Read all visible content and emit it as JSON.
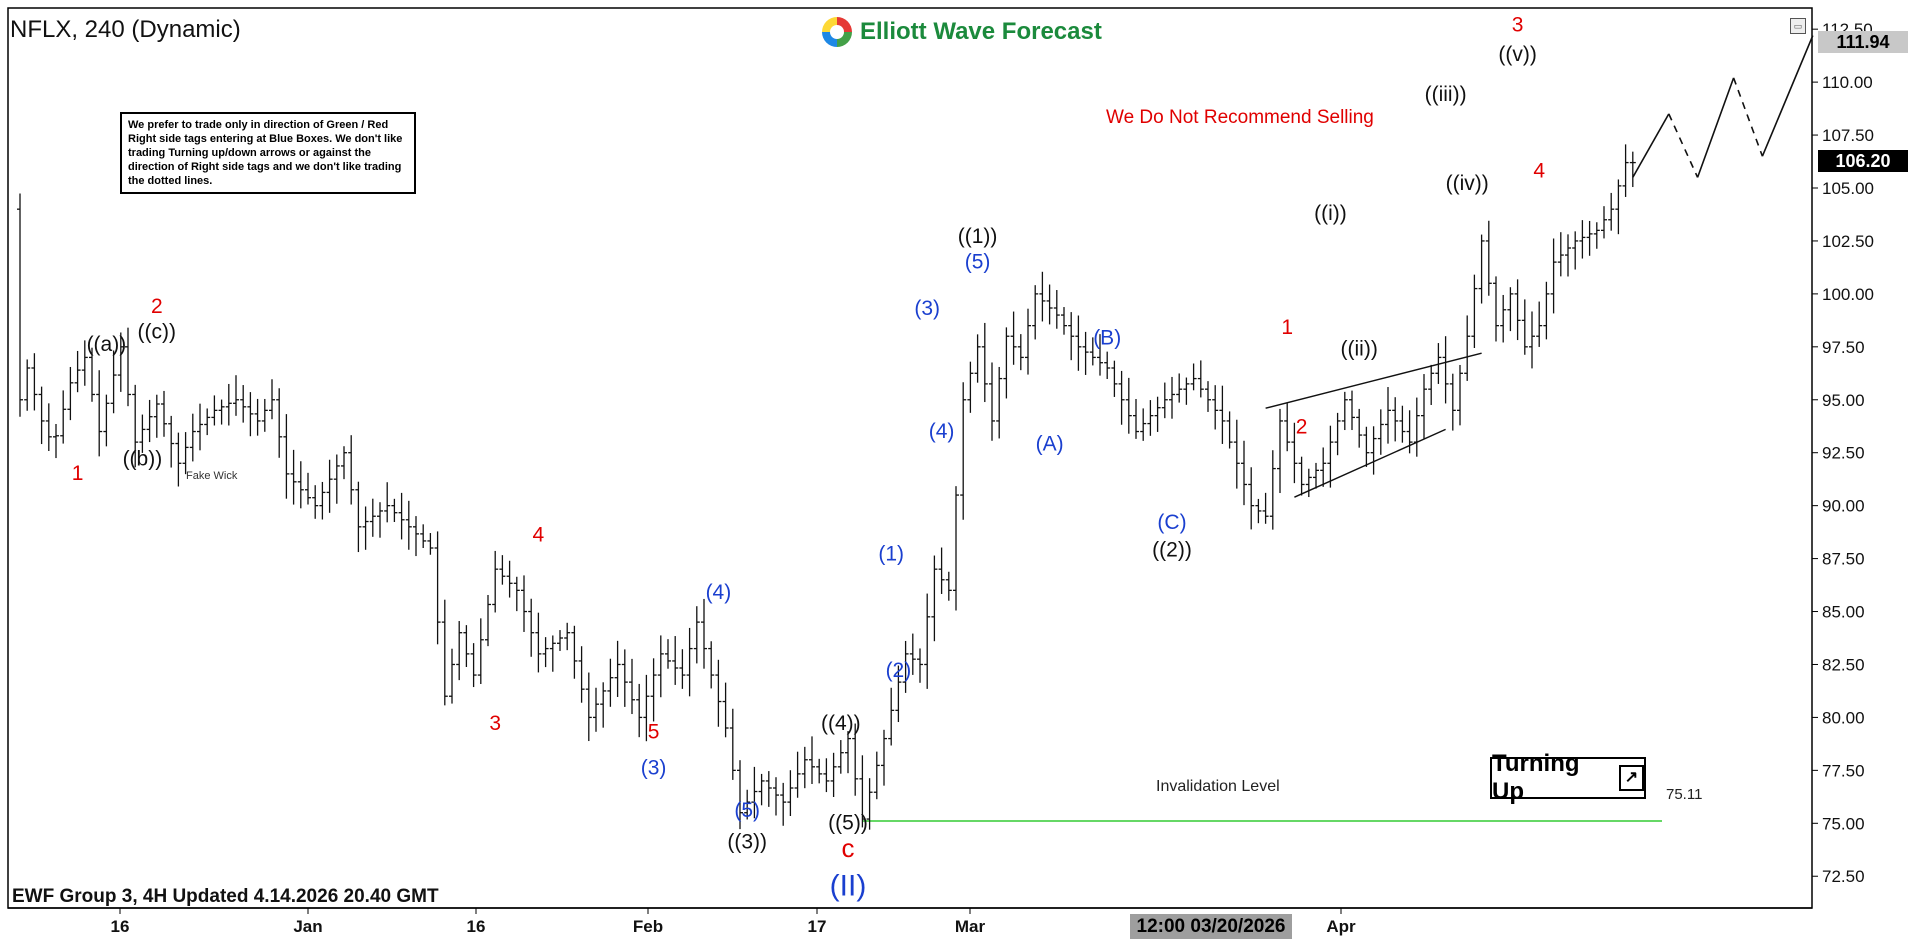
{
  "symbol": "NFLX, 240 (Dynamic)",
  "brand": "Elliott Wave Forecast",
  "note": "We prefer to trade only in direction of Green / Red Right side tags entering at Blue Boxes. We don't like trading Turning up/down arrows or against the direction of Right side tags and we don't like trading the dotted lines.",
  "recommendation": "We Do Not Recommend Selling",
  "turning": {
    "label": "Turning Up",
    "icon": "arrow-up-right-icon"
  },
  "footer": "EWF Group 3, 4H Updated 4.14.2026 20.40 GMT",
  "invalidation": {
    "label": "Invalidation Level",
    "value": "75.11"
  },
  "cursor_date": "12:00 03/20/2026",
  "fake_wick": "Fake Wick",
  "last_price": "106.20",
  "target_price": "111.94",
  "colors": {
    "red": "#e00000",
    "blue": "#1a3fcf",
    "black": "#111111",
    "green": "#33cc33"
  },
  "chart_data": {
    "type": "bar",
    "subtype": "ohlc",
    "ylim": [
      71,
      113.5
    ],
    "y_ticks": [
      "112.50",
      "110.00",
      "107.50",
      "105.00",
      "102.50",
      "100.00",
      "97.50",
      "95.00",
      "92.50",
      "90.00",
      "87.50",
      "85.00",
      "82.50",
      "80.00",
      "77.50",
      "75.00",
      "72.50"
    ],
    "x_ticks": [
      "16",
      "Jan",
      "16",
      "Feb",
      "17",
      "Mar",
      "Apr"
    ],
    "invalidation_level": 75.11,
    "path": [
      [
        0,
        104
      ],
      [
        0.5,
        95
      ],
      [
        1,
        96.5
      ],
      [
        2,
        94
      ],
      [
        2.8,
        92.8
      ],
      [
        4,
        95.8
      ],
      [
        5,
        97
      ],
      [
        6,
        93.5
      ],
      [
        7.5,
        97.5
      ],
      [
        8.5,
        93
      ],
      [
        10,
        94.8
      ],
      [
        11.5,
        92
      ],
      [
        12.5,
        93.5
      ],
      [
        14,
        94.5
      ],
      [
        15.5,
        95
      ],
      [
        17,
        94
      ],
      [
        18,
        95
      ],
      [
        19,
        91.5
      ],
      [
        21,
        90
      ],
      [
        23,
        92.5
      ],
      [
        24,
        89
      ],
      [
        26,
        90
      ],
      [
        27.5,
        89
      ],
      [
        29,
        88
      ],
      [
        30,
        81
      ],
      [
        31,
        84
      ],
      [
        32,
        82
      ],
      [
        33.5,
        87
      ],
      [
        35,
        86
      ],
      [
        36.5,
        83
      ],
      [
        38.5,
        84
      ],
      [
        40,
        80
      ],
      [
        42,
        82.5
      ],
      [
        43.5,
        80
      ],
      [
        45,
        83
      ],
      [
        46.5,
        82
      ],
      [
        47.5,
        84.5
      ],
      [
        48.5,
        82
      ],
      [
        49.5,
        79.5
      ],
      [
        50.5,
        75.5
      ],
      [
        52,
        77
      ],
      [
        53.5,
        76
      ],
      [
        55,
        78
      ],
      [
        56.5,
        77
      ],
      [
        58,
        79
      ],
      [
        59,
        75.2
      ],
      [
        60.5,
        79
      ],
      [
        62,
        83
      ],
      [
        63,
        82.5
      ],
      [
        64,
        87
      ],
      [
        65,
        86
      ],
      [
        66,
        95
      ],
      [
        67,
        97.5
      ],
      [
        68,
        94
      ],
      [
        69,
        98
      ],
      [
        70,
        97
      ],
      [
        71,
        100
      ],
      [
        72.5,
        99
      ],
      [
        74,
        97.5
      ],
      [
        76,
        96.5
      ],
      [
        78,
        93.5
      ],
      [
        80,
        95
      ],
      [
        82,
        96
      ],
      [
        84,
        94
      ],
      [
        86,
        90
      ],
      [
        87,
        89.5
      ],
      [
        88,
        94
      ],
      [
        89.5,
        91
      ],
      [
        91,
        92
      ],
      [
        92.5,
        95
      ],
      [
        94,
        92.5
      ],
      [
        95.5,
        94.5
      ],
      [
        97,
        93
      ],
      [
        98,
        95.5
      ],
      [
        99,
        97
      ],
      [
        100,
        94.5
      ],
      [
        101,
        98
      ],
      [
        102,
        102.5
      ],
      [
        103,
        98.5
      ],
      [
        104,
        100
      ],
      [
        105,
        97.5
      ],
      [
        106,
        98.5
      ],
      [
        107,
        101.5
      ],
      [
        108.5,
        102.5
      ],
      [
        110,
        103
      ],
      [
        111,
        104
      ],
      [
        112,
        106.2
      ]
    ],
    "forecast": [
      {
        "x": 112,
        "y": 105.5,
        "style": "solid"
      },
      {
        "x": 114.5,
        "y": 108.5,
        "style": "solid"
      },
      {
        "x": 116.5,
        "y": 105.5,
        "style": "dashed"
      },
      {
        "x": 119,
        "y": 110.2,
        "style": "solid"
      },
      {
        "x": 121,
        "y": 106.5,
        "style": "dashed"
      },
      {
        "x": 124.5,
        "y": 112.2,
        "style": "solid"
      }
    ],
    "wedge": [
      [
        [
          86.5,
          94.6
        ],
        [
          101.5,
          97.2
        ]
      ],
      [
        [
          88.5,
          90.4
        ],
        [
          99,
          93.6
        ]
      ]
    ],
    "labels": [
      {
        "text": "1",
        "x": 4,
        "y": 91.2,
        "color": "red"
      },
      {
        "text": "((a))",
        "x": 6,
        "y": 97.3,
        "color": "black"
      },
      {
        "text": "((b))",
        "x": 8.5,
        "y": 91.9,
        "color": "black"
      },
      {
        "text": "((c))",
        "x": 9.5,
        "y": 97.9,
        "color": "black"
      },
      {
        "text": "2",
        "x": 9.5,
        "y": 99.1,
        "color": "red"
      },
      {
        "text": "3",
        "x": 33,
        "y": 79.4,
        "color": "red"
      },
      {
        "text": "4",
        "x": 36,
        "y": 88.3,
        "color": "red"
      },
      {
        "text": "5",
        "x": 44,
        "y": 79.0,
        "color": "red"
      },
      {
        "text": "(3)",
        "x": 44,
        "y": 77.3,
        "color": "blue"
      },
      {
        "text": "(4)",
        "x": 48.5,
        "y": 85.6,
        "color": "blue"
      },
      {
        "text": "(5)",
        "x": 50.5,
        "y": 75.3,
        "color": "blue"
      },
      {
        "text": "((3))",
        "x": 50.5,
        "y": 73.8,
        "color": "black"
      },
      {
        "text": "((4))",
        "x": 57,
        "y": 79.4,
        "color": "black"
      },
      {
        "text": "((5))",
        "x": 57.5,
        "y": 74.7,
        "color": "black"
      },
      {
        "text": "c",
        "x": 57.5,
        "y": 73.4,
        "color": "red",
        "size": 26
      },
      {
        "text": "(II)",
        "x": 57.5,
        "y": 71.6,
        "color": "blue",
        "size": 30
      },
      {
        "text": "(1)",
        "x": 60.5,
        "y": 87.4,
        "color": "blue"
      },
      {
        "text": "(2)",
        "x": 61,
        "y": 81.9,
        "color": "blue"
      },
      {
        "text": "(3)",
        "x": 63,
        "y": 99.0,
        "color": "blue"
      },
      {
        "text": "(4)",
        "x": 64,
        "y": 93.2,
        "color": "blue"
      },
      {
        "text": "(5)",
        "x": 66.5,
        "y": 101.2,
        "color": "blue"
      },
      {
        "text": "((1))",
        "x": 66.5,
        "y": 102.4,
        "color": "black"
      },
      {
        "text": "(A)",
        "x": 71.5,
        "y": 92.6,
        "color": "blue"
      },
      {
        "text": "(B)",
        "x": 75.5,
        "y": 97.6,
        "color": "blue"
      },
      {
        "text": "(C)",
        "x": 80,
        "y": 88.9,
        "color": "blue"
      },
      {
        "text": "((2))",
        "x": 80,
        "y": 87.6,
        "color": "black"
      },
      {
        "text": "1",
        "x": 88,
        "y": 98.1,
        "color": "red"
      },
      {
        "text": "2",
        "x": 89,
        "y": 93.4,
        "color": "red"
      },
      {
        "text": "((i))",
        "x": 91,
        "y": 103.5,
        "color": "black"
      },
      {
        "text": "((ii))",
        "x": 93,
        "y": 97.1,
        "color": "black"
      },
      {
        "text": "((iii))",
        "x": 99,
        "y": 109.1,
        "color": "black"
      },
      {
        "text": "((iv))",
        "x": 100.5,
        "y": 104.9,
        "color": "black"
      },
      {
        "text": "((v))",
        "x": 104,
        "y": 111.0,
        "color": "black"
      },
      {
        "text": "3",
        "x": 104,
        "y": 112.4,
        "color": "red"
      },
      {
        "text": "4",
        "x": 105.5,
        "y": 105.5,
        "color": "red"
      }
    ]
  }
}
